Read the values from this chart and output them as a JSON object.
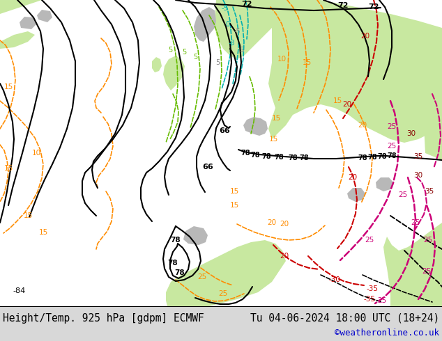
{
  "title_left": "Height/Temp. 925 hPa [gdpm] ECMWF",
  "title_right": "Tu 04-06-2024 18:00 UTC (18+24)",
  "credit": "©weatheronline.co.uk",
  "fig_width": 6.34,
  "fig_height": 4.9,
  "dpi": 100,
  "bg_color": "#ffffff",
  "bar_color": "#d0d0d0",
  "map_bg": "#f0eeea",
  "land_green": "#c8e8a0",
  "land_gray": "#b8b8b8",
  "land_light_gray": "#d0d0d0",
  "c_black": "#000000",
  "c_orange": "#ff8c00",
  "c_green": "#66bb00",
  "c_cyan": "#00b0b0",
  "c_red": "#cc0000",
  "c_magenta": "#cc0077",
  "c_dkred": "#990000",
  "title_fs": 10.5,
  "credit_fs": 9
}
